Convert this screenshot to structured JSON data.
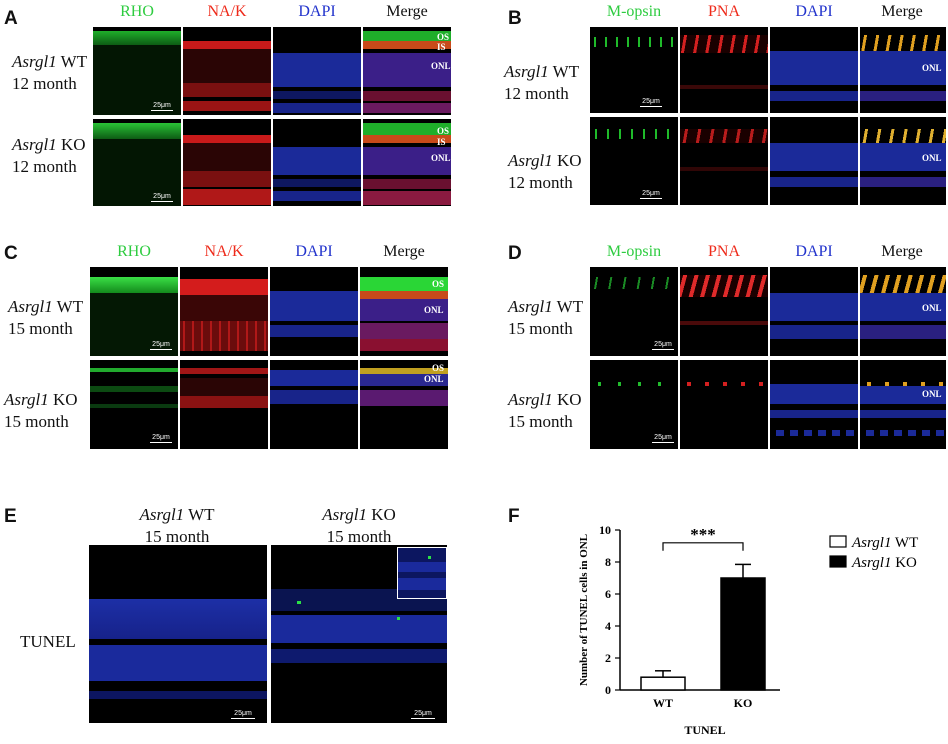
{
  "panels": {
    "A": {
      "letter": "A",
      "channels": [
        "RHO",
        "NA/K",
        "DAPI",
        "Merge"
      ],
      "rows": [
        {
          "gene": "Asrgl1",
          "geno": " WT",
          "age": "12 month"
        },
        {
          "gene": "Asrgl1",
          "geno": " KO",
          "age": "12 month"
        }
      ],
      "layer_labels": [
        [
          "OS",
          "IS",
          "ONL"
        ],
        [
          "OS",
          "IS",
          "ONL"
        ]
      ],
      "scale": "25μm"
    },
    "B": {
      "letter": "B",
      "channels": [
        "M-opsin",
        "PNA",
        "DAPI",
        "Merge"
      ],
      "rows": [
        {
          "gene": "Asrgl1",
          "geno": " WT",
          "age": "12 month"
        },
        {
          "gene": "Asrgl1",
          "geno": " KO",
          "age": "12 month"
        }
      ],
      "layer_labels": [
        [
          "ONL"
        ],
        [
          "ONL"
        ]
      ],
      "scale": "25μm"
    },
    "C": {
      "letter": "C",
      "channels": [
        "RHO",
        "NA/K",
        "DAPI",
        "Merge"
      ],
      "rows": [
        {
          "gene": "Asrgl1",
          "geno": " WT",
          "age": "15 month"
        },
        {
          "gene": "Asrgl1",
          "geno": " KO",
          "age": "15 month"
        }
      ],
      "layer_labels": [
        [
          "OS",
          "ONL"
        ],
        [
          "OS",
          "ONL"
        ]
      ],
      "scale": "25μm"
    },
    "D": {
      "letter": "D",
      "channels": [
        "M-opsin",
        "PNA",
        "DAPI",
        "Merge"
      ],
      "rows": [
        {
          "gene": "Asrgl1",
          "geno": " WT",
          "age": "15 month"
        },
        {
          "gene": "Asrgl1",
          "geno": " KO",
          "age": "15 month"
        }
      ],
      "layer_labels": [
        [
          "ONL"
        ],
        [
          "ONL"
        ]
      ],
      "scale": "25μm"
    },
    "E": {
      "letter": "E",
      "cols": [
        {
          "gene": "Asrgl1",
          "geno": " WT",
          "age": "15 month"
        },
        {
          "gene": "Asrgl1",
          "geno": " KO",
          "age": "15 month"
        }
      ],
      "row_label": "TUNEL",
      "scale": "25μm"
    },
    "F": {
      "letter": "F"
    }
  },
  "colors": {
    "green": "#22dd33",
    "red": "#ee2222",
    "blue": "#2233dd",
    "label_green": "#2ecc40",
    "label_red": "#ee2a1a",
    "label_blue": "#2233cc"
  },
  "chart_data": {
    "type": "bar",
    "categories": [
      "WT",
      "KO"
    ],
    "series": [
      {
        "name": "Asrgl1 WT",
        "values": [
          0.8,
          null
        ],
        "errors": [
          0.4,
          null
        ],
        "fill": "#ffffff"
      },
      {
        "name": "Asrgl1 KO",
        "values": [
          null,
          7.0
        ],
        "errors": [
          null,
          0.85
        ],
        "fill": "#000000"
      }
    ],
    "ylabel": "Number of TUNEL cells in ONL",
    "xlabel": "TUNEL",
    "ylim": [
      0,
      10
    ],
    "yticks": [
      0,
      2,
      4,
      6,
      8,
      10
    ],
    "significance": "***",
    "legend": [
      {
        "gene": "Asrgl1",
        "geno": " WT"
      },
      {
        "gene": "Asrgl1",
        "geno": " KO"
      }
    ],
    "legend_position": "right"
  }
}
